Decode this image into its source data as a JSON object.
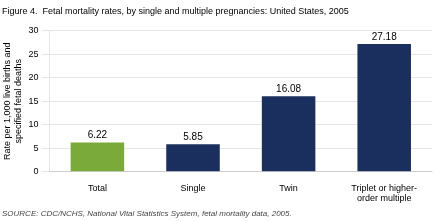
{
  "chart_data": {
    "type": "bar",
    "title": "Figure 4.  Fetal mortality rates, by single and multiple pregnancies: United States, 2005",
    "annotations": [
      "SOURCE: CDC/NCHS, National Vital Statistics System, fetal mortality data, 2005."
    ],
    "categories": [
      "Total",
      "Single",
      "Twin",
      "Triplet or higher-\norder multiple"
    ],
    "values": [
      6.22,
      5.85,
      16.08,
      27.18
    ],
    "colors": [
      "#7aab3a",
      "#1b2f5e",
      "#1b2f5e",
      "#1b2f5e"
    ],
    "ylabel": "Rate per 1,000 live births and\nspecified fetal deaths",
    "ylim": [
      0,
      30
    ],
    "yticks": [
      0,
      5,
      10,
      15,
      20,
      25,
      30
    ],
    "grid": true,
    "data_labels": true
  }
}
